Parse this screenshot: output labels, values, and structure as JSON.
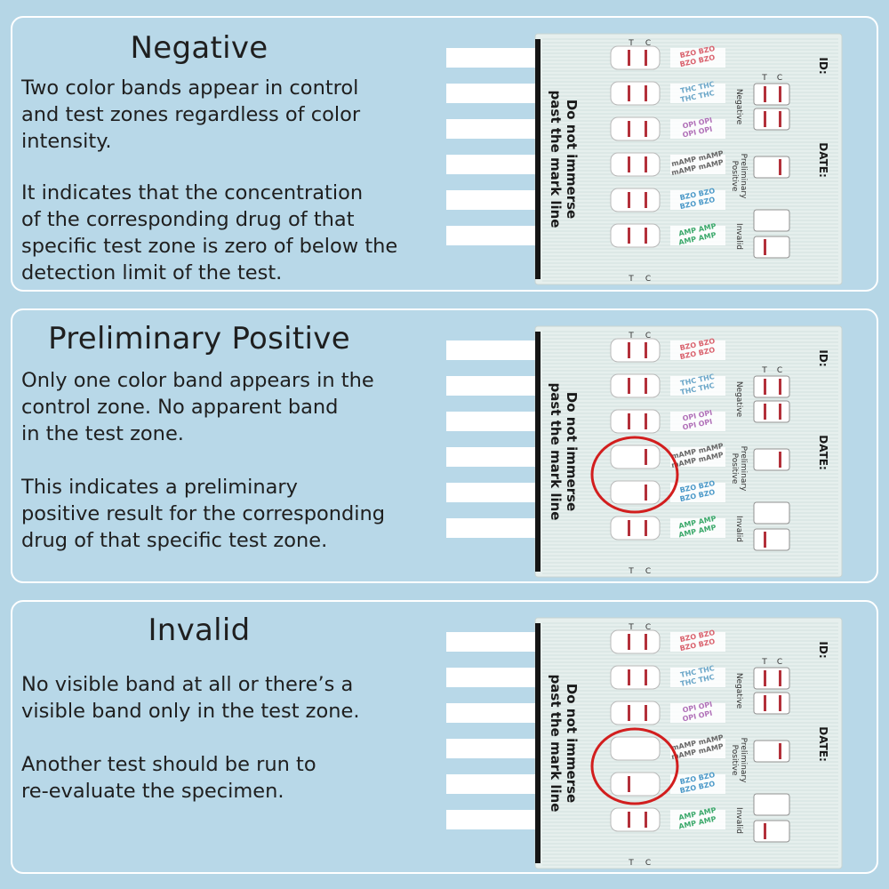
{
  "panels": [
    {
      "id": "negative",
      "title": "Negative",
      "paragraphs": [
        [
          "Two color bands appear in control",
          "and test zones regardless of color",
          "intensity."
        ],
        [
          "It indicates that the concentration",
          "of the corresponding drug of that",
          "specific test zone is zero of below the",
          "detection limit of the test."
        ]
      ],
      "strip_control_band": [
        true,
        true,
        true,
        true,
        true,
        true
      ],
      "strip_test_band": [
        true,
        true,
        true,
        true,
        true,
        true
      ],
      "circled_strips": []
    },
    {
      "id": "preliminary-positive",
      "title": "Preliminary Positive",
      "paragraphs": [
        [
          "Only one color band appears in the",
          "control zone. No apparent band",
          "in the test zone."
        ],
        [
          "This indicates a preliminary",
          "positive result for the corresponding",
          "drug of that specific test zone."
        ]
      ],
      "strip_control_band": [
        true,
        true,
        true,
        true,
        true,
        true
      ],
      "strip_test_band": [
        true,
        true,
        true,
        false,
        false,
        true
      ],
      "circled_strips": [
        3,
        4
      ]
    },
    {
      "id": "invalid",
      "title": "Invalid",
      "paragraphs": [
        [
          "No visible band at all or there’s a",
          "visible band only in the test zone."
        ],
        [
          "Another test should be run to",
          "re-evaluate the specimen."
        ]
      ],
      "strip_control_band": [
        true,
        true,
        true,
        false,
        false,
        true
      ],
      "strip_test_band": [
        true,
        true,
        true,
        false,
        true,
        true
      ],
      "circled_strips": [
        3,
        4
      ]
    }
  ],
  "card": {
    "warning_lines": [
      "Do not immerse",
      "past the mark line"
    ],
    "id_label": "ID:",
    "date_label": "DATE:",
    "control_letter": "C",
    "test_letter": "T",
    "drug_codes": [
      "BZO",
      "THC",
      "OPI",
      "mAMP",
      "BZO",
      "AMP"
    ],
    "drug_colors": [
      "#d9606c",
      "#6aa6c8",
      "#b070b8",
      "#666666",
      "#4a98c8",
      "#3aa86a"
    ],
    "legend_labels": [
      "Negative",
      "Preliminary Positive",
      "Invalid"
    ],
    "band_color": "#b3303a",
    "circle_color": "#d21e1e"
  }
}
